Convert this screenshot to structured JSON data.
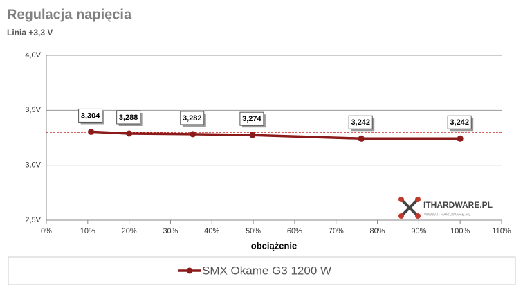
{
  "chart_data": {
    "type": "line",
    "title": "Regulacja napięcia",
    "subtitle": "Linia +3,3 V",
    "x_label": "obciążenie",
    "x": [
      10.8,
      20,
      35.4,
      49.8,
      76.1,
      100
    ],
    "series": [
      {
        "name": "SMX Okame G3 1200 W",
        "color": "#8b1a1a",
        "values": [
          3.304,
          3.288,
          3.282,
          3.274,
          3.242,
          3.242
        ],
        "value_labels": [
          "3,304",
          "3,288",
          "3,282",
          "3,274",
          "3,242",
          "3,242"
        ]
      }
    ],
    "reference_line": 3.3,
    "reference_color": "#c00000",
    "xlim": [
      0,
      110
    ],
    "xticks": [
      {
        "value": 0,
        "label": "0%"
      },
      {
        "value": 10,
        "label": "10%"
      },
      {
        "value": 20,
        "label": "20%"
      },
      {
        "value": 30,
        "label": "30%"
      },
      {
        "value": 40,
        "label": "40%"
      },
      {
        "value": 50,
        "label": "50%"
      },
      {
        "value": 60,
        "label": "60%"
      },
      {
        "value": 70,
        "label": "70%"
      },
      {
        "value": 80,
        "label": "80%"
      },
      {
        "value": 90,
        "label": "90%"
      },
      {
        "value": 100,
        "label": "100%"
      },
      {
        "value": 110,
        "label": "110%"
      }
    ],
    "ylim": [
      2.5,
      4.0
    ],
    "yticks": [
      {
        "value": 2.5,
        "label": "2,5V"
      },
      {
        "value": 3.0,
        "label": "3,0V"
      },
      {
        "value": 3.5,
        "label": "3,5V"
      },
      {
        "value": 4.0,
        "label": "4,0V"
      }
    ],
    "grid": true,
    "legend": "bottom",
    "watermark": "ITHARDWARE.PL",
    "watermark_url": "WWW.ITHARDWARE.PL"
  }
}
